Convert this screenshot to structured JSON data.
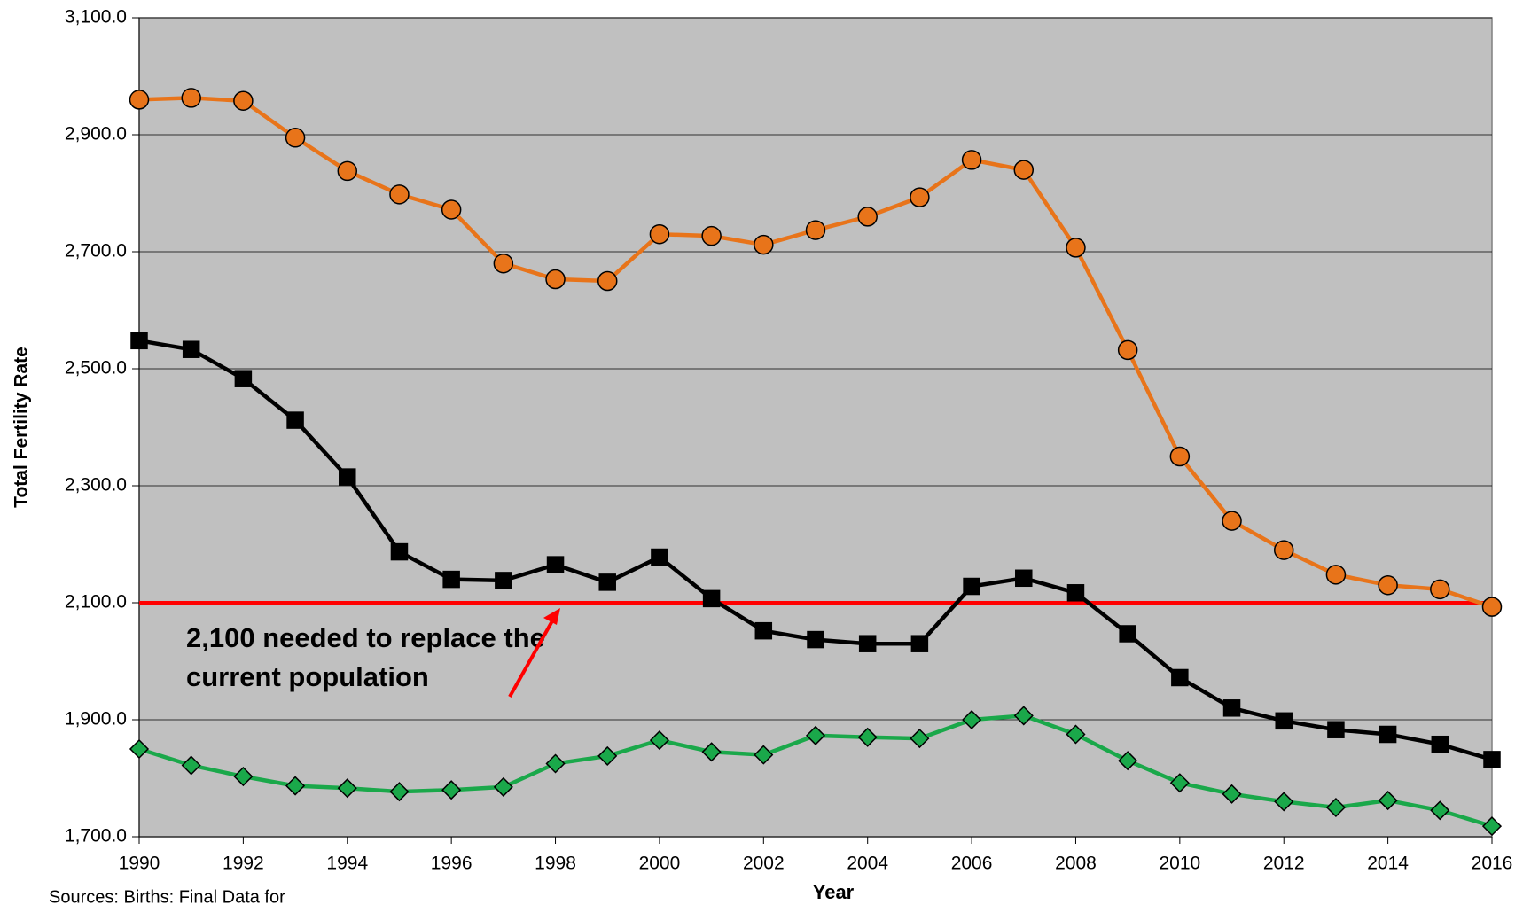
{
  "chart_data": {
    "type": "line",
    "x": [
      1990,
      1991,
      1992,
      1993,
      1994,
      1995,
      1996,
      1997,
      1998,
      1999,
      2000,
      2001,
      2002,
      2003,
      2004,
      2005,
      2006,
      2007,
      2008,
      2009,
      2010,
      2011,
      2012,
      2013,
      2014,
      2015,
      2016
    ],
    "series": [
      {
        "color": "#e8741a",
        "marker": "circle",
        "values": [
          2960,
          2963,
          2958,
          2895,
          2838,
          2798,
          2772,
          2680,
          2653,
          2650,
          2730,
          2727,
          2712,
          2737,
          2760,
          2793,
          2857,
          2840,
          2707,
          2532,
          2350,
          2240,
          2190,
          2148,
          2130,
          2123,
          2093
        ]
      },
      {
        "color": "#000000",
        "marker": "square",
        "values": [
          2548,
          2533,
          2483,
          2412,
          2315,
          2187,
          2140,
          2138,
          2165,
          2135,
          2178,
          2107,
          2052,
          2037,
          2030,
          2030,
          2128,
          2142,
          2117,
          2047,
          1972,
          1920,
          1898,
          1883,
          1875,
          1858,
          1832
        ]
      },
      {
        "color": "#1aa84a",
        "marker": "diamond",
        "values": [
          1850,
          1822,
          1803,
          1787,
          1783,
          1777,
          1780,
          1785,
          1825,
          1838,
          1865,
          1845,
          1840,
          1873,
          1870,
          1868,
          1900,
          1907,
          1875,
          1830,
          1792,
          1773,
          1760,
          1750,
          1762,
          1745,
          1718
        ]
      }
    ],
    "reference_line": {
      "value": 2100,
      "color": "#ff0000",
      "label": "2,100 needed to replace the current population"
    },
    "xlabel": "Year",
    "ylabel": "Total Fertility Rate",
    "xlim": [
      1990,
      2016
    ],
    "xticks": [
      1990,
      1992,
      1994,
      1996,
      1998,
      2000,
      2002,
      2004,
      2006,
      2008,
      2010,
      2012,
      2014,
      2016
    ],
    "ylim": [
      1700,
      3100
    ],
    "yticks": [
      {
        "value": 1700,
        "label": "1,700.0"
      },
      {
        "value": 1900,
        "label": "1,900.0"
      },
      {
        "value": 2100,
        "label": "2,100.0"
      },
      {
        "value": 2300,
        "label": "2,300.0"
      },
      {
        "value": 2500,
        "label": "2,500.0"
      },
      {
        "value": 2700,
        "label": "2,700.0"
      },
      {
        "value": 2900,
        "label": "2,900.0"
      },
      {
        "value": 3100,
        "label": "3,100.0"
      }
    ],
    "grid": true,
    "plot_background": "#c0c0c0",
    "source": "Sources: Births: Final Data for"
  }
}
